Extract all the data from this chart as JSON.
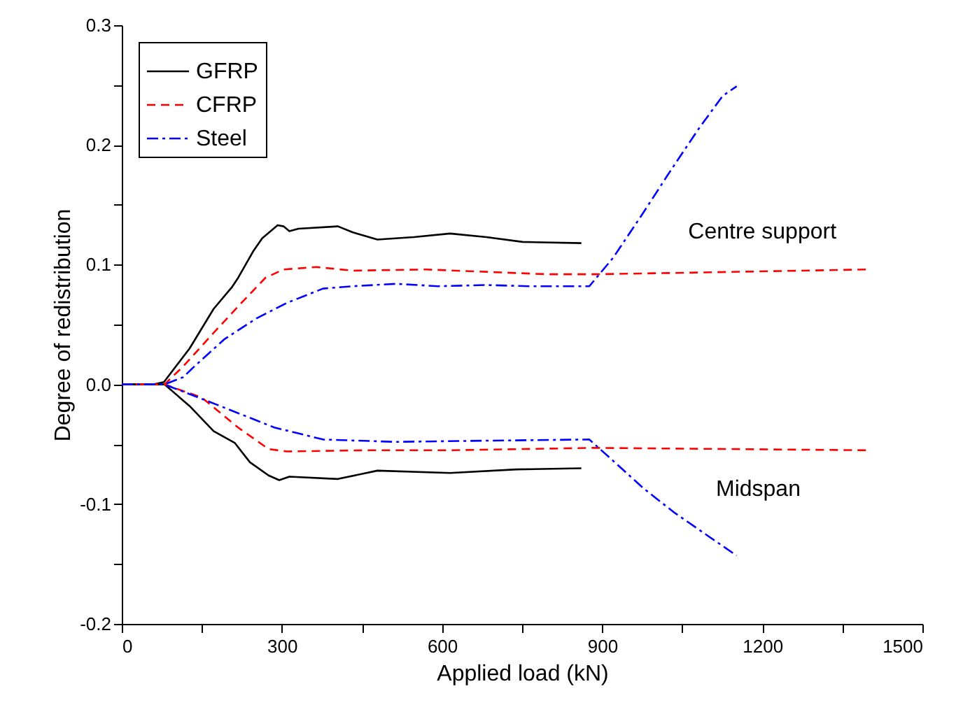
{
  "chart_data": {
    "type": "line",
    "xlabel": "Applied load (kN)",
    "ylabel": "Degree of redistribution",
    "xlim": [
      0,
      1500
    ],
    "ylim": [
      -0.2,
      0.3
    ],
    "xticks": [
      0,
      {
        "value": 150,
        "label": null
      },
      300,
      {
        "value": 450,
        "label": null
      },
      600,
      {
        "value": 750,
        "label": null
      },
      900,
      {
        "value": 1050,
        "label": null
      },
      1200,
      {
        "value": 1350,
        "label": null
      },
      1500
    ],
    "yticks": [
      {
        "value": -0.2,
        "label": "-0.2"
      },
      {
        "value": -0.15,
        "label": null
      },
      {
        "value": -0.1,
        "label": "-0.1"
      },
      {
        "value": -0.05,
        "label": null
      },
      {
        "value": 0,
        "label": "0.0"
      },
      {
        "value": 0.05,
        "label": null
      },
      {
        "value": 0.1,
        "label": "0.1"
      },
      {
        "value": 0.15,
        "label": null
      },
      {
        "value": 0.2,
        "label": "0.2"
      },
      {
        "value": 0.25,
        "label": null
      },
      {
        "value": 0.3,
        "label": "0.3"
      }
    ],
    "grid": false,
    "legend": "top left",
    "marker": "none",
    "annotations": [
      "Centre support",
      "Midspan"
    ],
    "series": [
      {
        "name": "GFRP",
        "color": "#000000",
        "line_style": "solid",
        "x": [
          0,
          60,
          79,
          127,
          172,
          206,
          218,
          246,
          263,
          292,
          303,
          314,
          331,
          405,
          433,
          479,
          547,
          615,
          683,
          751,
          861
        ],
        "values": [
          0,
          0,
          0.002,
          0.03,
          0.063,
          0.081,
          0.089,
          0.111,
          0.122,
          0.133,
          0.132,
          0.128,
          0.13,
          0.132,
          0.127,
          0.121,
          0.123,
          0.126,
          0.123,
          0.119,
          0.118
        ]
      },
      {
        "name": "CFRP",
        "color": "#ff0000",
        "line_style": "dashed",
        "x": [
          0,
          80,
          115,
          172,
          224,
          269,
          303,
          365,
          433,
          570,
          683,
          797,
          885,
          1023,
          1398
        ],
        "values": [
          0,
          0,
          0.015,
          0.043,
          0.068,
          0.089,
          0.096,
          0.098,
          0.095,
          0.096,
          0.094,
          0.092,
          0.092,
          0.093,
          0.096
        ]
      },
      {
        "name": "Steel",
        "color": "#0000ff",
        "line_style": "dashdot",
        "x": [
          0,
          80,
          115,
          136,
          193,
          252,
          309,
          377,
          433,
          513,
          592,
          683,
          763,
          876,
          921,
          978,
          1023,
          1080,
          1126,
          1152
        ],
        "values": [
          0,
          0,
          0.006,
          0.015,
          0.038,
          0.055,
          0.068,
          0.08,
          0.082,
          0.084,
          0.082,
          0.083,
          0.082,
          0.082,
          0.106,
          0.144,
          0.175,
          0.213,
          0.241,
          0.249
        ]
      },
      {
        "color": "#000000",
        "line_style": "solid",
        "x": [
          0,
          80,
          127,
          172,
          212,
          240,
          275,
          295,
          314,
          405,
          479,
          615,
          740,
          861
        ],
        "values": [
          0,
          0,
          -0.018,
          -0.039,
          -0.049,
          -0.065,
          -0.076,
          -0.08,
          -0.077,
          -0.079,
          -0.072,
          -0.074,
          -0.071,
          -0.07
        ]
      },
      {
        "color": "#ff0000",
        "line_style": "dashed",
        "x": [
          0,
          80,
          150,
          218,
          275,
          309,
          456,
          615,
          885,
          1398
        ],
        "values": [
          0,
          0,
          -0.011,
          -0.036,
          -0.054,
          -0.056,
          -0.055,
          -0.055,
          -0.053,
          -0.055
        ]
      },
      {
        "color": "#0000ff",
        "line_style": "dashdot",
        "x": [
          0,
          80,
          115,
          184,
          286,
          377,
          513,
          683,
          876,
          921,
          978,
          1035,
          1103,
          1152
        ],
        "values": [
          0,
          0,
          -0.006,
          -0.018,
          -0.036,
          -0.046,
          -0.048,
          -0.047,
          -0.046,
          -0.064,
          -0.087,
          -0.107,
          -0.128,
          -0.143
        ]
      }
    ]
  }
}
